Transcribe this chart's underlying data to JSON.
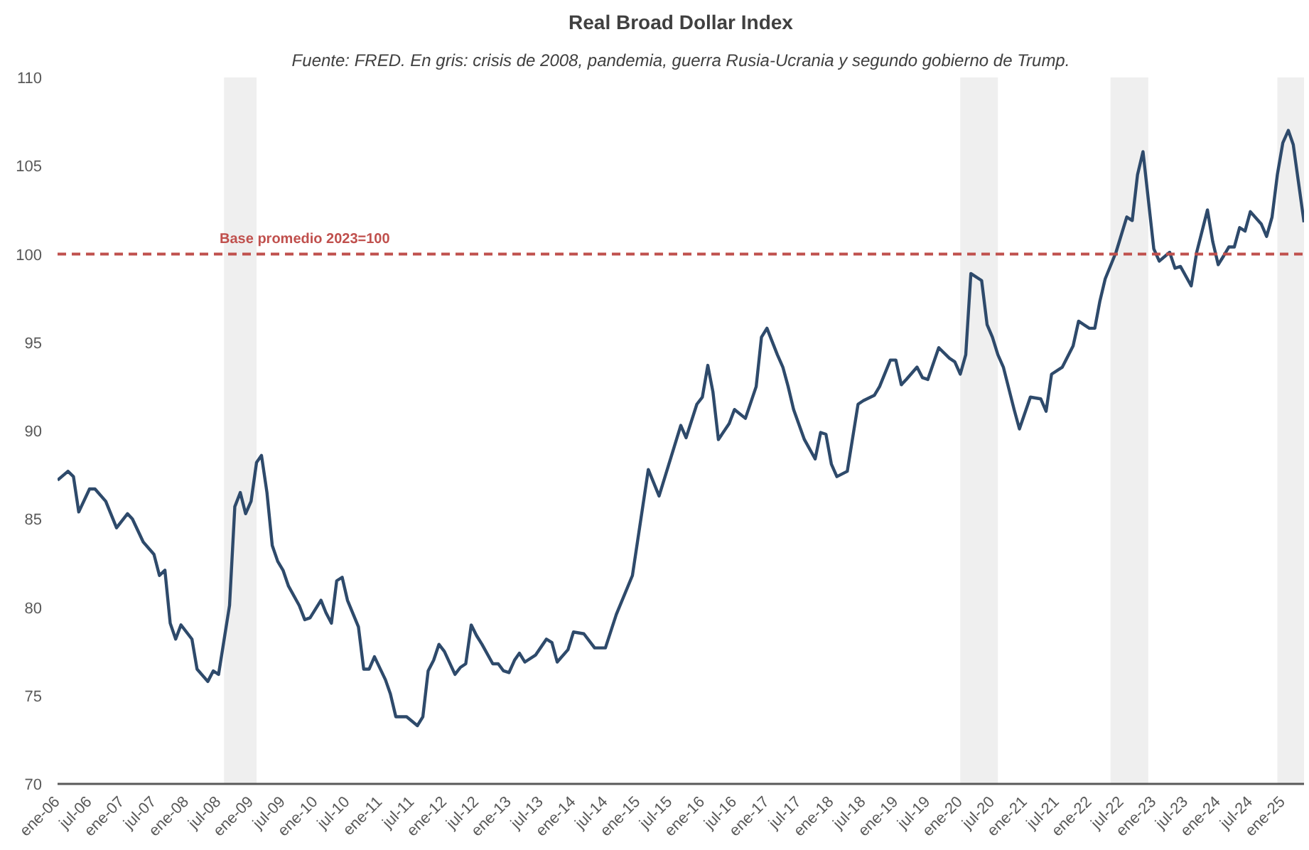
{
  "chart_data": {
    "type": "line",
    "title": "Real Broad Dollar Index",
    "subtitle": "Fuente: FRED. En gris: crisis de 2008, pandemia, guerra Rusia-Ucrania y segundo gobierno de Trump.",
    "x": [
      "2006-01",
      "2006-03",
      "2006-04",
      "2006-05",
      "2006-07",
      "2006-08",
      "2006-10",
      "2006-12",
      "2007-02",
      "2007-03",
      "2007-05",
      "2007-07",
      "2007-08",
      "2007-09",
      "2007-10",
      "2007-11",
      "2007-12",
      "2008-02",
      "2008-03",
      "2008-05",
      "2008-06",
      "2008-07",
      "2008-09",
      "2008-10",
      "2008-11",
      "2008-12",
      "2009-01",
      "2009-02",
      "2009-03",
      "2009-04",
      "2009-05",
      "2009-06",
      "2009-07",
      "2009-08",
      "2009-10",
      "2009-11",
      "2009-12",
      "2010-02",
      "2010-03",
      "2010-04",
      "2010-05",
      "2010-06",
      "2010-07",
      "2010-09",
      "2010-10",
      "2010-11",
      "2010-12",
      "2011-02",
      "2011-03",
      "2011-04",
      "2011-06",
      "2011-08",
      "2011-09",
      "2011-10",
      "2011-11",
      "2011-12",
      "2012-01",
      "2012-03",
      "2012-04",
      "2012-05",
      "2012-06",
      "2012-07",
      "2012-08",
      "2012-10",
      "2012-11",
      "2012-12",
      "2013-01",
      "2013-02",
      "2013-03",
      "2013-04",
      "2013-06",
      "2013-08",
      "2013-09",
      "2013-10",
      "2013-12",
      "2014-01",
      "2014-03",
      "2014-05",
      "2014-07",
      "2014-09",
      "2014-12",
      "2015-03",
      "2015-05",
      "2015-09",
      "2015-10",
      "2015-12",
      "2016-01",
      "2016-02",
      "2016-03",
      "2016-04",
      "2016-06",
      "2016-07",
      "2016-09",
      "2016-11",
      "2016-12",
      "2017-01",
      "2017-03",
      "2017-04",
      "2017-05",
      "2017-06",
      "2017-08",
      "2017-10",
      "2017-11",
      "2017-12",
      "2018-01",
      "2018-02",
      "2018-04",
      "2018-06",
      "2018-07",
      "2018-09",
      "2018-10",
      "2018-12",
      "2019-01",
      "2019-02",
      "2019-03",
      "2019-05",
      "2019-06",
      "2019-07",
      "2019-09",
      "2019-11",
      "2019-12",
      "2020-01",
      "2020-02",
      "2020-03",
      "2020-05",
      "2020-06",
      "2020-07",
      "2020-08",
      "2020-09",
      "2020-11",
      "2020-12",
      "2021-02",
      "2021-04",
      "2021-05",
      "2021-06",
      "2021-08",
      "2021-10",
      "2021-11",
      "2022-01",
      "2022-02",
      "2022-03",
      "2022-04",
      "2022-06",
      "2022-08",
      "2022-09",
      "2022-10",
      "2022-11",
      "2023-01",
      "2023-02",
      "2023-04",
      "2023-05",
      "2023-06",
      "2023-08",
      "2023-09",
      "2023-11",
      "2023-12",
      "2024-01",
      "2024-02",
      "2024-03",
      "2024-04",
      "2024-05",
      "2024-06",
      "2024-07",
      "2024-09",
      "2024-10",
      "2024-11",
      "2024-12",
      "2025-01",
      "2025-02",
      "2025-03",
      "2025-05"
    ],
    "series": [
      {
        "color": "#2e4a6b",
        "values": [
          87.2,
          87.7,
          87.4,
          85.4,
          86.7,
          86.7,
          86.0,
          84.5,
          85.3,
          85.0,
          83.7,
          83.0,
          81.8,
          82.1,
          79.1,
          78.2,
          79.0,
          78.2,
          76.5,
          75.8,
          76.4,
          76.2,
          80.1,
          85.7,
          86.5,
          85.3,
          86.0,
          88.2,
          88.6,
          86.5,
          83.5,
          82.6,
          82.1,
          81.2,
          80.1,
          79.3,
          79.4,
          80.4,
          79.7,
          79.1,
          81.5,
          81.7,
          80.4,
          78.9,
          76.5,
          76.5,
          77.2,
          75.9,
          75.1,
          73.8,
          73.8,
          73.3,
          73.8,
          76.4,
          77.0,
          77.9,
          77.5,
          76.2,
          76.6,
          76.8,
          79.0,
          78.4,
          77.9,
          76.8,
          76.8,
          76.4,
          76.3,
          77.0,
          77.4,
          76.9,
          77.3,
          78.2,
          78.0,
          76.9,
          77.6,
          78.6,
          78.5,
          77.7,
          77.7,
          79.6,
          81.8,
          87.8,
          86.3,
          90.3,
          89.6,
          91.5,
          91.9,
          93.7,
          92.2,
          89.5,
          90.4,
          91.2,
          90.7,
          92.5,
          95.3,
          95.8,
          94.3,
          93.6,
          92.5,
          91.2,
          89.5,
          88.4,
          89.9,
          89.8,
          88.1,
          87.4,
          87.7,
          91.5,
          91.7,
          92.0,
          92.5,
          94.0,
          94.0,
          92.6,
          92.9,
          93.6,
          93.0,
          92.9,
          94.7,
          94.1,
          93.9,
          93.2,
          94.3,
          98.9,
          98.5,
          96.0,
          95.3,
          94.3,
          93.6,
          91.2,
          90.1,
          91.9,
          91.8,
          91.1,
          93.2,
          93.6,
          94.8,
          96.2,
          95.8,
          95.8,
          97.3,
          98.6,
          100.1,
          102.1,
          101.9,
          104.5,
          105.8,
          100.3,
          99.6,
          100.1,
          99.2,
          99.3,
          98.2,
          100.1,
          102.5,
          100.7,
          99.4,
          99.9,
          100.4,
          100.4,
          101.5,
          101.3,
          102.4,
          101.7,
          101.0,
          102.1,
          104.5,
          106.3,
          107.0,
          106.2,
          101.8
        ]
      }
    ],
    "xlim": [
      "2006-01",
      "2025-05"
    ],
    "xticks": [
      {
        "value": "2006-01",
        "label": "ene-06"
      },
      {
        "value": "2006-07",
        "label": "jul-06"
      },
      {
        "value": "2007-01",
        "label": "ene-07"
      },
      {
        "value": "2007-07",
        "label": "jul-07"
      },
      {
        "value": "2008-01",
        "label": "ene-08"
      },
      {
        "value": "2008-07",
        "label": "jul-08"
      },
      {
        "value": "2009-01",
        "label": "ene-09"
      },
      {
        "value": "2009-07",
        "label": "jul-09"
      },
      {
        "value": "2010-01",
        "label": "ene-10"
      },
      {
        "value": "2010-07",
        "label": "jul-10"
      },
      {
        "value": "2011-01",
        "label": "ene-11"
      },
      {
        "value": "2011-07",
        "label": "jul-11"
      },
      {
        "value": "2012-01",
        "label": "ene-12"
      },
      {
        "value": "2012-07",
        "label": "jul-12"
      },
      {
        "value": "2013-01",
        "label": "ene-13"
      },
      {
        "value": "2013-07",
        "label": "jul-13"
      },
      {
        "value": "2014-01",
        "label": "ene-14"
      },
      {
        "value": "2014-07",
        "label": "jul-14"
      },
      {
        "value": "2015-01",
        "label": "ene-15"
      },
      {
        "value": "2015-07",
        "label": "jul-15"
      },
      {
        "value": "2016-01",
        "label": "ene-16"
      },
      {
        "value": "2016-07",
        "label": "jul-16"
      },
      {
        "value": "2017-01",
        "label": "ene-17"
      },
      {
        "value": "2017-07",
        "label": "jul-17"
      },
      {
        "value": "2018-01",
        "label": "ene-18"
      },
      {
        "value": "2018-07",
        "label": "jul-18"
      },
      {
        "value": "2019-01",
        "label": "ene-19"
      },
      {
        "value": "2019-07",
        "label": "jul-19"
      },
      {
        "value": "2020-01",
        "label": "ene-20"
      },
      {
        "value": "2020-07",
        "label": "jul-20"
      },
      {
        "value": "2021-01",
        "label": "ene-21"
      },
      {
        "value": "2021-07",
        "label": "jul-21"
      },
      {
        "value": "2022-01",
        "label": "ene-22"
      },
      {
        "value": "2022-07",
        "label": "jul-22"
      },
      {
        "value": "2023-01",
        "label": "ene-23"
      },
      {
        "value": "2023-07",
        "label": "jul-23"
      },
      {
        "value": "2024-01",
        "label": "ene-24"
      },
      {
        "value": "2024-07",
        "label": "jul-24"
      },
      {
        "value": "2025-01",
        "label": "ene-25"
      }
    ],
    "ylim": [
      70,
      110
    ],
    "yticks": [
      70,
      75,
      80,
      85,
      90,
      95,
      100,
      105,
      110
    ],
    "ref_lines": [
      {
        "axis": "y",
        "value": 100,
        "label": "Base promedio 2023=100",
        "color": "#c0504d",
        "line_style": "dashed"
      }
    ],
    "bands": [
      {
        "axis": "x",
        "from": "2008-08",
        "to": "2009-02",
        "color": "#efefef"
      },
      {
        "axis": "x",
        "from": "2020-01",
        "to": "2020-08",
        "color": "#efefef"
      },
      {
        "axis": "x",
        "from": "2022-05",
        "to": "2022-12",
        "color": "#efefef"
      },
      {
        "axis": "x",
        "from": "2024-12",
        "to": "2025-05",
        "color": "#efefef"
      }
    ],
    "grid": false,
    "marker": "none",
    "line_style": "solid"
  }
}
